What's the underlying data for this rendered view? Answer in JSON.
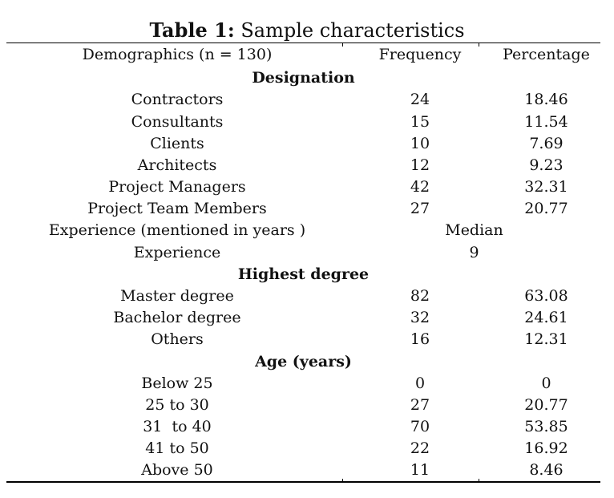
{
  "title": {
    "lead": "Table 1:",
    "text": " Sample characteristics"
  },
  "header": {
    "col1": "Demographics (n = 130)",
    "col2": "Frequency",
    "col3": "Percentage"
  },
  "sections": {
    "designation": {
      "title": "Designation",
      "rows": [
        {
          "label": "Contractors",
          "frequency": "24",
          "percentage": "18.46"
        },
        {
          "label": "Consultants",
          "frequency": "15",
          "percentage": "11.54"
        },
        {
          "label": "Clients",
          "frequency": "10",
          "percentage": "7.69"
        },
        {
          "label": "Architects",
          "frequency": "12",
          "percentage": "9.23"
        },
        {
          "label": "Project Managers",
          "frequency": "42",
          "percentage": "32.31"
        },
        {
          "label": "Project Team Members",
          "frequency": "27",
          "percentage": "20.77"
        }
      ]
    },
    "experience": {
      "label": "Experience (mentioned in years )",
      "stat_label": "Median",
      "row_label": "Experience",
      "value": "9"
    },
    "highest_degree": {
      "title": "Highest degree",
      "rows": [
        {
          "label": "Master degree",
          "frequency": "82",
          "percentage": "63.08"
        },
        {
          "label": "Bachelor degree",
          "frequency": "32",
          "percentage": "24.61"
        },
        {
          "label": "Others",
          "frequency": "16",
          "percentage": "12.31"
        }
      ]
    },
    "age": {
      "title": "Age (years)",
      "rows": [
        {
          "label": "Below 25",
          "frequency": "0",
          "percentage": "0"
        },
        {
          "label": "25 to 30",
          "frequency": "27",
          "percentage": "20.77"
        },
        {
          "label": "31  to 40",
          "frequency": "70",
          "percentage": "53.85"
        },
        {
          "label": "41 to 50",
          "frequency": "22",
          "percentage": "16.92"
        },
        {
          "label": "Above 50",
          "frequency": "11",
          "percentage": "8.46"
        }
      ]
    }
  }
}
